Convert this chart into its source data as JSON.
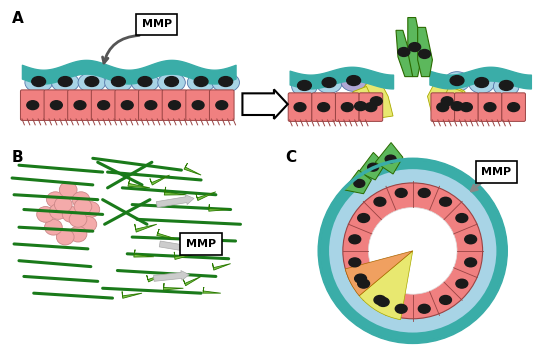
{
  "bg_color": "#ffffff",
  "panel_A_label": "A",
  "panel_B_label": "B",
  "panel_C_label": "C",
  "teal_color": "#3AADA8",
  "light_blue_cell": "#A8D4E6",
  "pink_cell": "#F08080",
  "dark_nucleus": "#1a1a1a",
  "green_cell": "#5CB85C",
  "yellow_cell": "#E8E870",
  "lavender_cell": "#B0A8D4",
  "dark_green": "#1A7A1A",
  "light_green": "#7DC44A",
  "light_pink_cluster": "#F4AAAA",
  "gray_arrow": "#BBBBBB",
  "orange_cell": "#F0A060",
  "border_color": "#555555"
}
